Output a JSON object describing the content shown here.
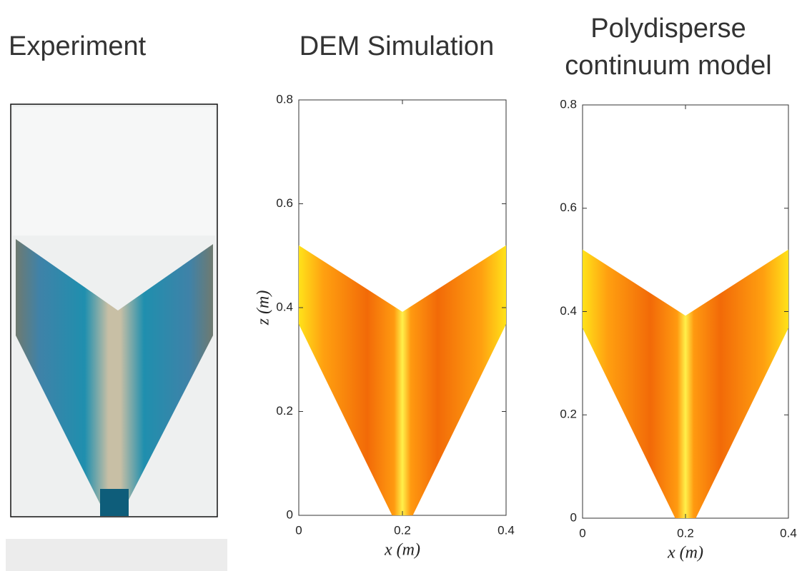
{
  "panels": [
    {
      "title": "Experiment"
    },
    {
      "title": "DEM Simulation",
      "xlabel": "x (m)",
      "ylabel": "z (m)",
      "xlim": [
        0,
        0.4
      ],
      "ylim": [
        0,
        0.8
      ],
      "xticks": [
        0,
        0.2,
        0.4
      ],
      "yticks": [
        0,
        0.2,
        0.4,
        0.6,
        0.8
      ]
    },
    {
      "title": "Polydisperse continuum model",
      "xlabel": "x (m)",
      "xlim": [
        0,
        0.4
      ],
      "ylim": [
        0,
        0.8
      ],
      "xticks": [
        0,
        0.2,
        0.4
      ],
      "yticks": [
        0,
        0.2,
        0.4,
        0.6,
        0.8
      ]
    }
  ]
}
